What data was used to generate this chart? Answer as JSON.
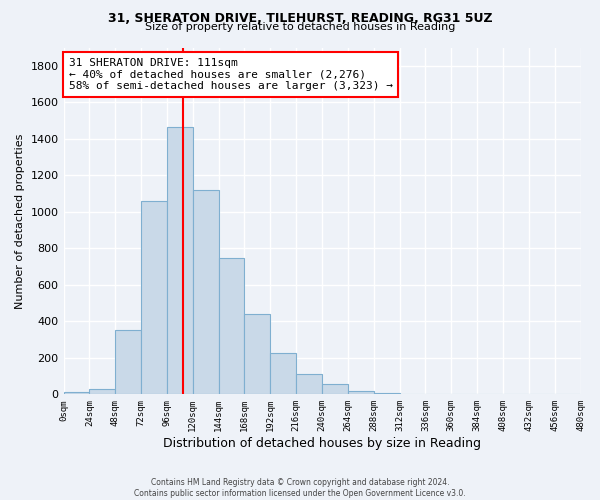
{
  "title_line1": "31, SHERATON DRIVE, TILEHURST, READING, RG31 5UZ",
  "title_line2": "Size of property relative to detached houses in Reading",
  "xlabel": "Distribution of detached houses by size in Reading",
  "ylabel": "Number of detached properties",
  "bin_edges": [
    0,
    24,
    48,
    72,
    96,
    120,
    144,
    168,
    192,
    216,
    240,
    264,
    288,
    312,
    336,
    360,
    384,
    408,
    432,
    456,
    480
  ],
  "bar_heights": [
    15,
    30,
    355,
    1060,
    1465,
    1120,
    745,
    440,
    225,
    110,
    55,
    20,
    5,
    0,
    0,
    0,
    0,
    0,
    0,
    0
  ],
  "bar_color": "#c9d9e8",
  "bar_edge_color": "#7fafd0",
  "vline_x": 111,
  "vline_color": "red",
  "annotation_line1": "31 SHERATON DRIVE: 111sqm",
  "annotation_line2": "← 40% of detached houses are smaller (2,276)",
  "annotation_line3": "58% of semi-detached houses are larger (3,323) →",
  "annotation_box_color": "white",
  "annotation_box_edge_color": "red",
  "ylim": [
    0,
    1900
  ],
  "yticks": [
    0,
    200,
    400,
    600,
    800,
    1000,
    1200,
    1400,
    1600,
    1800
  ],
  "xtick_labels": [
    "0sqm",
    "24sqm",
    "48sqm",
    "72sqm",
    "96sqm",
    "120sqm",
    "144sqm",
    "168sqm",
    "192sqm",
    "216sqm",
    "240sqm",
    "264sqm",
    "288sqm",
    "312sqm",
    "336sqm",
    "360sqm",
    "384sqm",
    "408sqm",
    "432sqm",
    "456sqm",
    "480sqm"
  ],
  "footer_line1": "Contains HM Land Registry data © Crown copyright and database right 2024.",
  "footer_line2": "Contains public sector information licensed under the Open Government Licence v3.0.",
  "background_color": "#eef2f8",
  "grid_color": "white"
}
